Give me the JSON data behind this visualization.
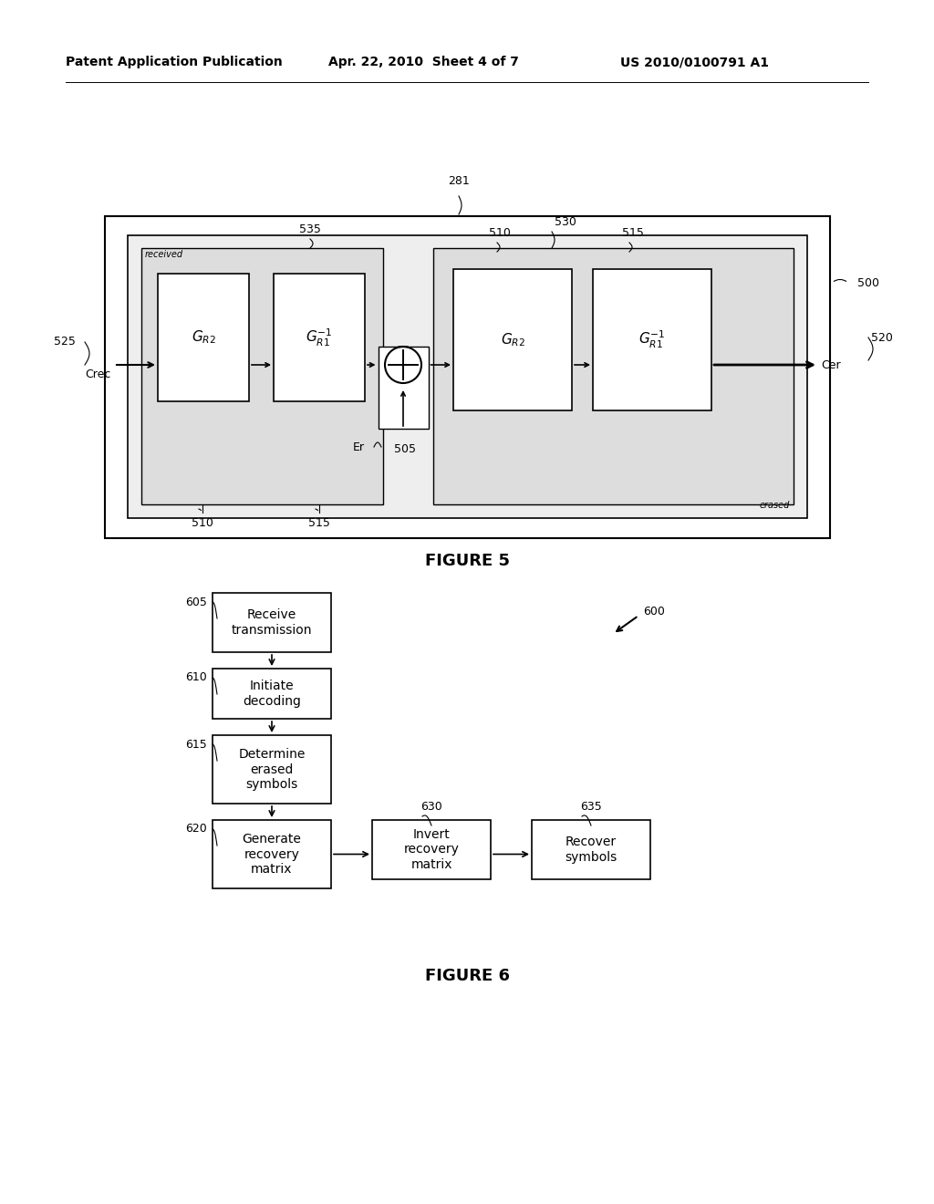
{
  "bg_color": "#ffffff",
  "header_left": "Patent Application Publication",
  "header_mid": "Apr. 22, 2010  Sheet 4 of 7",
  "header_right": "US 2010/0100791 A1",
  "fig5_label": "FIGURE 5",
  "fig6_label": "FIGURE 6",
  "label_281": "281",
  "label_500": "500",
  "label_525": "525",
  "label_535": "535",
  "label_530": "530",
  "label_510a": "510",
  "label_515a": "515",
  "label_510b": "510",
  "label_515b": "515",
  "label_520": "520",
  "label_505": "505",
  "label_Crec": "Crec",
  "label_Cer": "Cer",
  "label_Er": "Er",
  "label_received": "received",
  "label_erased": "erased",
  "label_GR2_1": "$G_{R2}$",
  "label_GR1inv_1": "$G_{R1}^{-1}$",
  "label_GR2_2": "$G_{R2}$",
  "label_GR1inv_2": "$G_{R1}^{-1}$",
  "label_605": "605",
  "label_610": "610",
  "label_615": "615",
  "label_620": "620",
  "label_630": "630",
  "label_635": "635",
  "label_600": "600",
  "box1_text": "Receive\ntransmission",
  "box2_text": "Initiate\ndecoding",
  "box3_text": "Determine\nerased\nsymbols",
  "box4_text": "Generate\nrecovery\nmatrix",
  "box5_text": "Invert\nrecovery\nmatrix",
  "box6_text": "Recover\nsymbols"
}
